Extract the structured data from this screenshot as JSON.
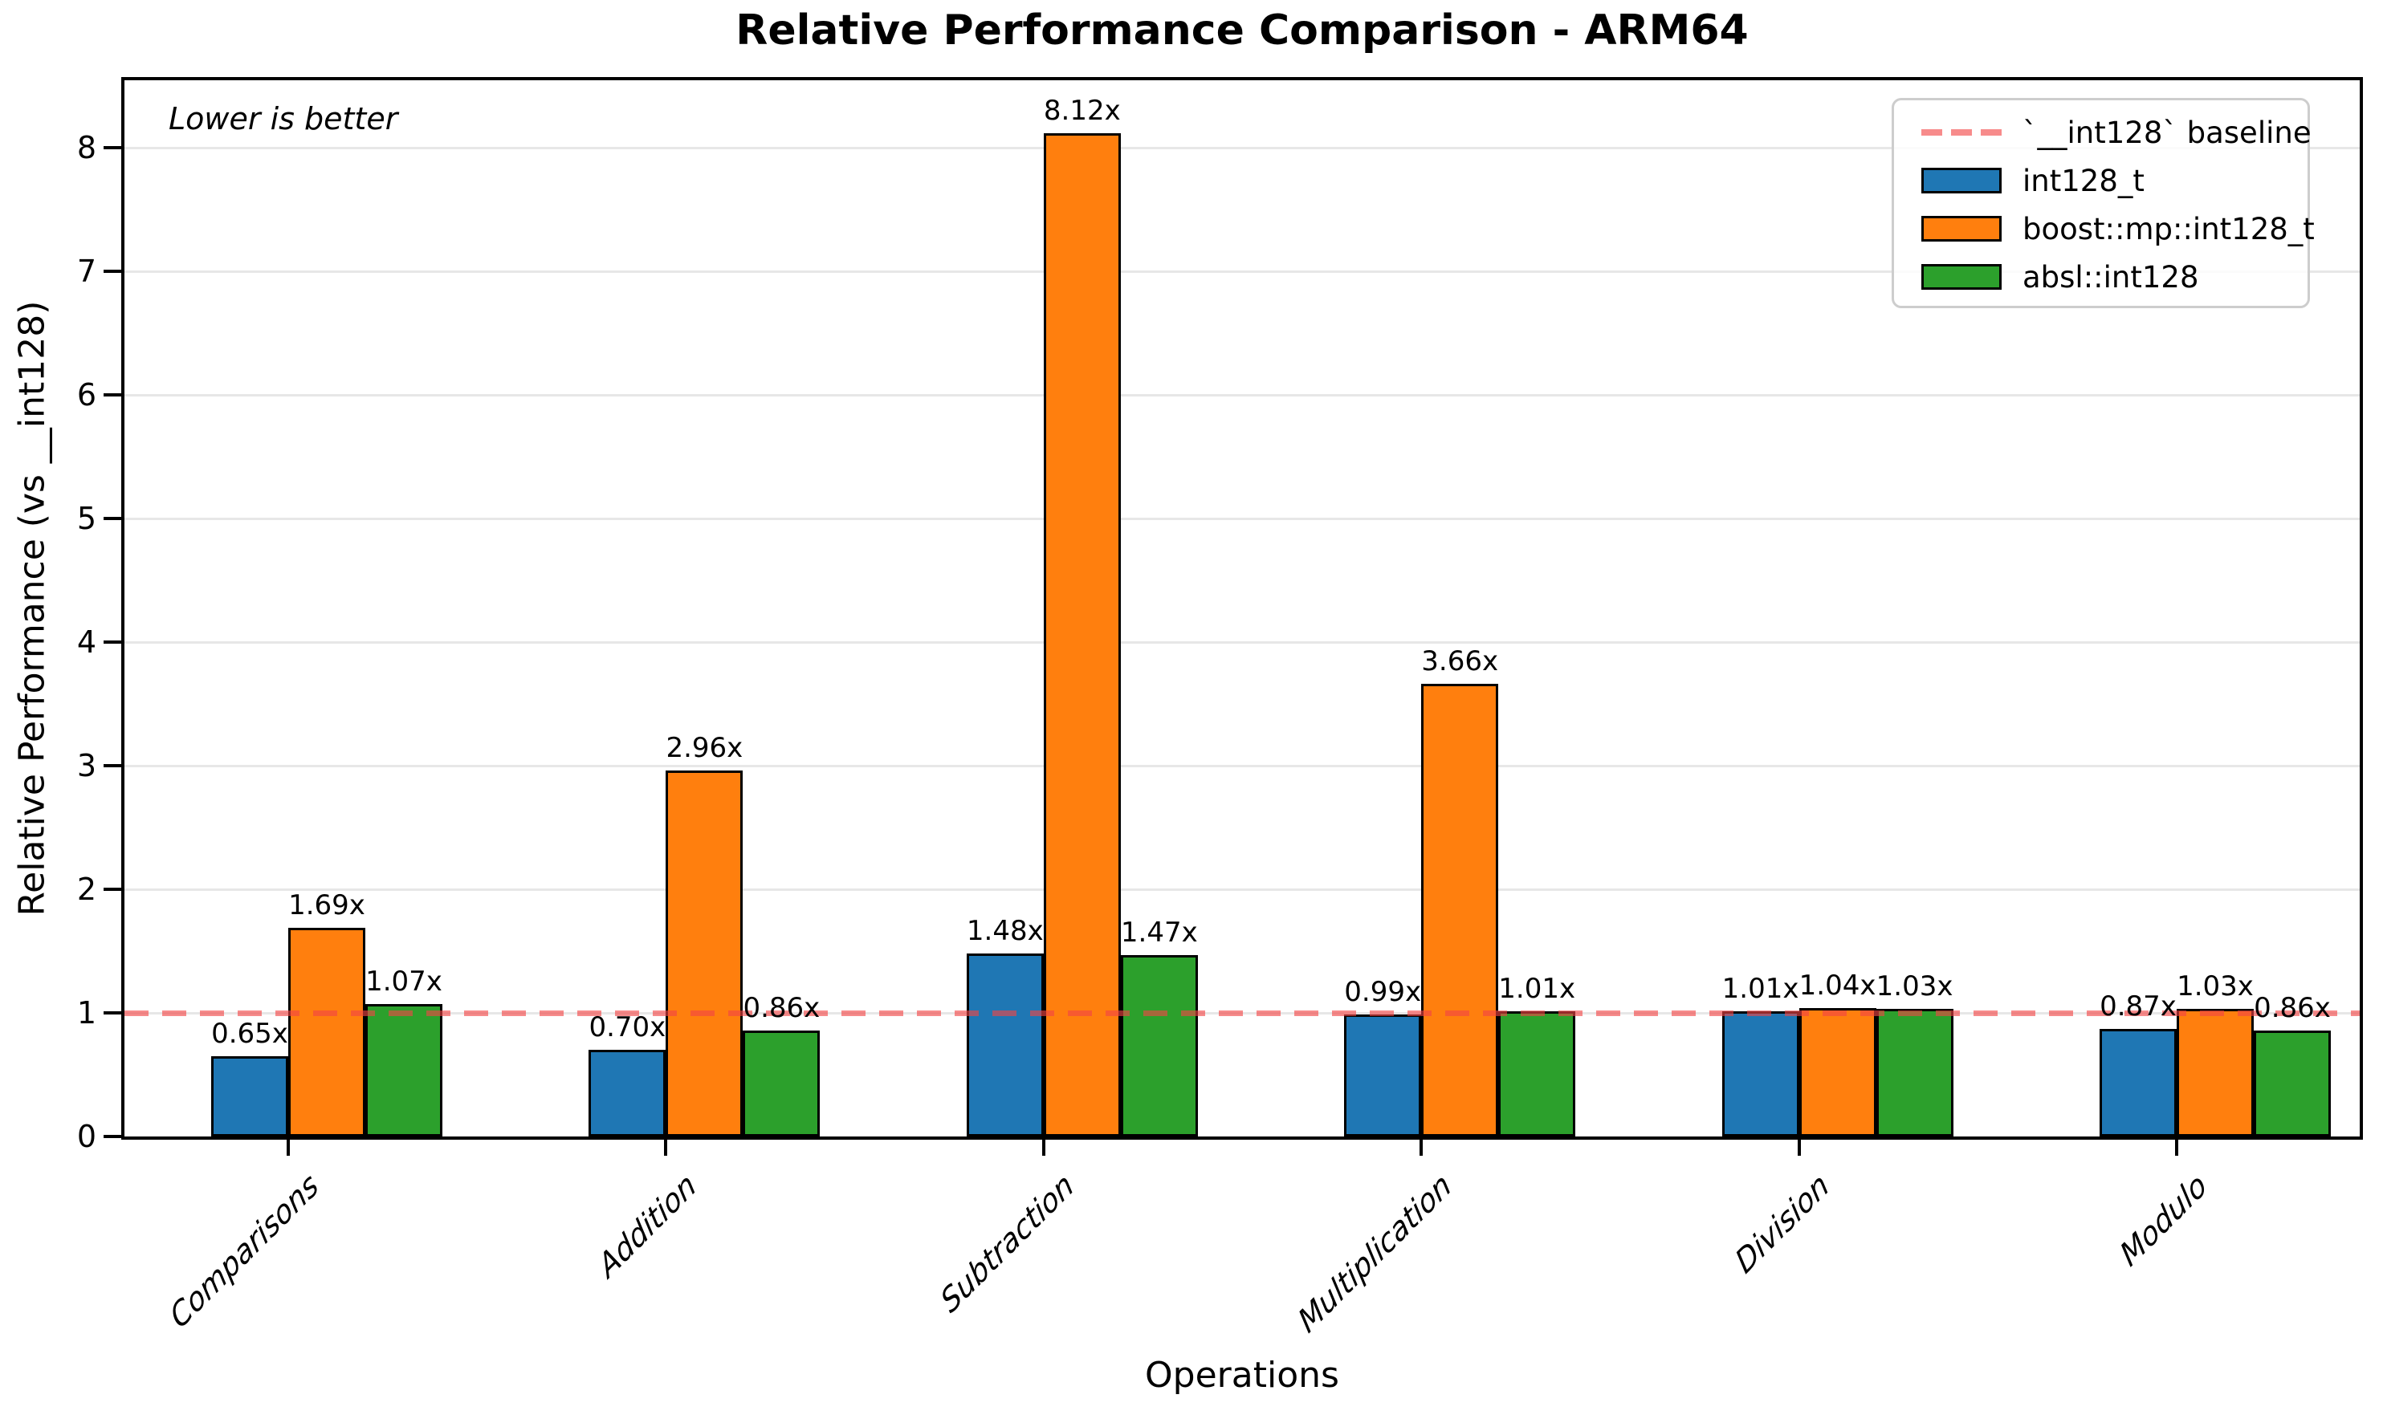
{
  "chart": {
    "title": "Relative Performance Comparison - ARM64",
    "annotation": "Lower is better",
    "xlabel": "Operations",
    "ylabel": "Relative Performance (vs __int128)"
  },
  "chart_data": {
    "type": "bar",
    "title": "Relative Performance Comparison - ARM64",
    "xlabel": "Operations",
    "ylabel": "Relative Performance (vs __int128)",
    "annotation": "Lower is better",
    "categories": [
      "Comparisons",
      "Addition",
      "Subtraction",
      "Multiplication",
      "Division",
      "Modulo"
    ],
    "series": [
      {
        "name": "int128_t",
        "color": "#1f77b4",
        "values": [
          0.65,
          0.7,
          1.48,
          0.99,
          1.01,
          0.87
        ],
        "labels": [
          "0.65x",
          "0.70x",
          "1.48x",
          "0.99x",
          "1.01x",
          "0.87x"
        ]
      },
      {
        "name": "boost::mp::int128_t",
        "color": "#ff7f0e",
        "values": [
          1.69,
          2.96,
          8.12,
          3.66,
          1.04,
          1.03
        ],
        "labels": [
          "1.69x",
          "2.96x",
          "8.12x",
          "3.66x",
          "1.04x",
          "1.03x"
        ]
      },
      {
        "name": "absl::int128",
        "color": "#2ca02c",
        "values": [
          1.07,
          0.86,
          1.47,
          1.01,
          1.03,
          0.86
        ],
        "labels": [
          "1.07x",
          "0.86x",
          "1.47x",
          "1.01x",
          "1.03x",
          "0.86x"
        ]
      }
    ],
    "baseline": {
      "value": 1.0,
      "label": "`__int128` baseline",
      "color": "rgba(242,68,68,0.62)",
      "style": "dashed"
    },
    "y_ticks": [
      0,
      1,
      2,
      3,
      4,
      5,
      6,
      7,
      8
    ],
    "ylim": [
      0,
      8.55
    ],
    "grid": true,
    "legend_position": "upper right",
    "bar_edge_color": "#000000"
  }
}
